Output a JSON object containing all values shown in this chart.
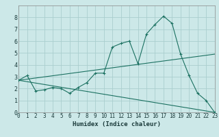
{
  "xlabel": "Humidex (Indice chaleur)",
  "bg_color": "#cce8e8",
  "grid_color": "#aacece",
  "line_color": "#1a7060",
  "line1_x": [
    0,
    1,
    2,
    3,
    4,
    5,
    6,
    7,
    8,
    9,
    10,
    11,
    12,
    13,
    14,
    15,
    16,
    17,
    18,
    19,
    20,
    21,
    22,
    23
  ],
  "line1_y": [
    2.7,
    3.1,
    1.8,
    1.9,
    2.1,
    2.0,
    1.6,
    2.1,
    2.5,
    3.3,
    3.3,
    5.5,
    5.8,
    6.0,
    4.1,
    6.6,
    7.4,
    8.1,
    7.5,
    4.9,
    3.1,
    1.6,
    1.0,
    0.0
  ],
  "line2_x": [
    0,
    23
  ],
  "line2_y": [
    2.7,
    0.0
  ],
  "line3_x": [
    0,
    23
  ],
  "line3_y": [
    2.7,
    4.9
  ],
  "xlim": [
    0,
    23
  ],
  "ylim": [
    0,
    9
  ],
  "yticks": [
    0,
    1,
    2,
    3,
    4,
    5,
    6,
    7,
    8
  ],
  "xticks": [
    0,
    1,
    2,
    3,
    4,
    5,
    6,
    7,
    8,
    9,
    10,
    11,
    12,
    13,
    14,
    15,
    16,
    17,
    18,
    19,
    20,
    21,
    22,
    23
  ],
  "xlabel_fontsize": 6.5,
  "tick_fontsize": 5.5,
  "ytick_fontsize": 6.0
}
